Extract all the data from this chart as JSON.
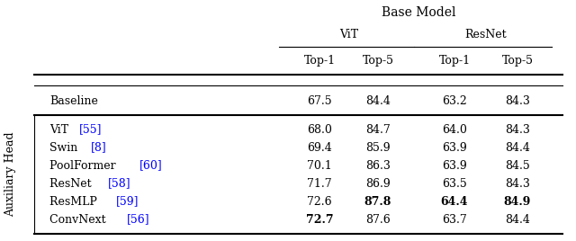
{
  "title": "Base Model",
  "col_groups": [
    {
      "label": "ViT"
    },
    {
      "label": "ResNet"
    }
  ],
  "col_headers": [
    "Top-1",
    "Top-5",
    "Top-1",
    "Top-5"
  ],
  "baseline_row": {
    "label": "Baseline",
    "values": [
      "67.5",
      "84.4",
      "63.2",
      "84.3"
    ],
    "bold": [
      false,
      false,
      false,
      false
    ]
  },
  "aux_label": "Auxiliary Head",
  "rows": [
    {
      "label_parts": [
        {
          "text": "ViT ",
          "color": "black"
        },
        {
          "text": "[55]",
          "color": "#0000ff"
        }
      ],
      "values": [
        "68.0",
        "84.7",
        "64.0",
        "84.3"
      ],
      "bold": [
        false,
        false,
        false,
        false
      ]
    },
    {
      "label_parts": [
        {
          "text": "Swin ",
          "color": "black"
        },
        {
          "text": "[8]",
          "color": "#0000ff"
        }
      ],
      "values": [
        "69.4",
        "85.9",
        "63.9",
        "84.4"
      ],
      "bold": [
        false,
        false,
        false,
        false
      ]
    },
    {
      "label_parts": [
        {
          "text": "PoolFormer ",
          "color": "black"
        },
        {
          "text": "[60]",
          "color": "#0000ff"
        }
      ],
      "values": [
        "70.1",
        "86.3",
        "63.9",
        "84.5"
      ],
      "bold": [
        false,
        false,
        false,
        false
      ]
    },
    {
      "label_parts": [
        {
          "text": "ResNet ",
          "color": "black"
        },
        {
          "text": "[58]",
          "color": "#0000ff"
        }
      ],
      "values": [
        "71.7",
        "86.9",
        "63.5",
        "84.3"
      ],
      "bold": [
        false,
        false,
        false,
        false
      ]
    },
    {
      "label_parts": [
        {
          "text": "ResMLP ",
          "color": "black"
        },
        {
          "text": "[59]",
          "color": "#0000ff"
        }
      ],
      "values": [
        "72.6",
        "87.8",
        "64.4",
        "84.9"
      ],
      "bold": [
        false,
        true,
        true,
        true
      ]
    },
    {
      "label_parts": [
        {
          "text": "ConvNext ",
          "color": "black"
        },
        {
          "text": "[56]",
          "color": "#0000ff"
        }
      ],
      "values": [
        "72.7",
        "87.6",
        "63.7",
        "84.4"
      ],
      "bold": [
        true,
        false,
        false,
        false
      ]
    }
  ],
  "font_size": 9.0,
  "bg_color": "white"
}
